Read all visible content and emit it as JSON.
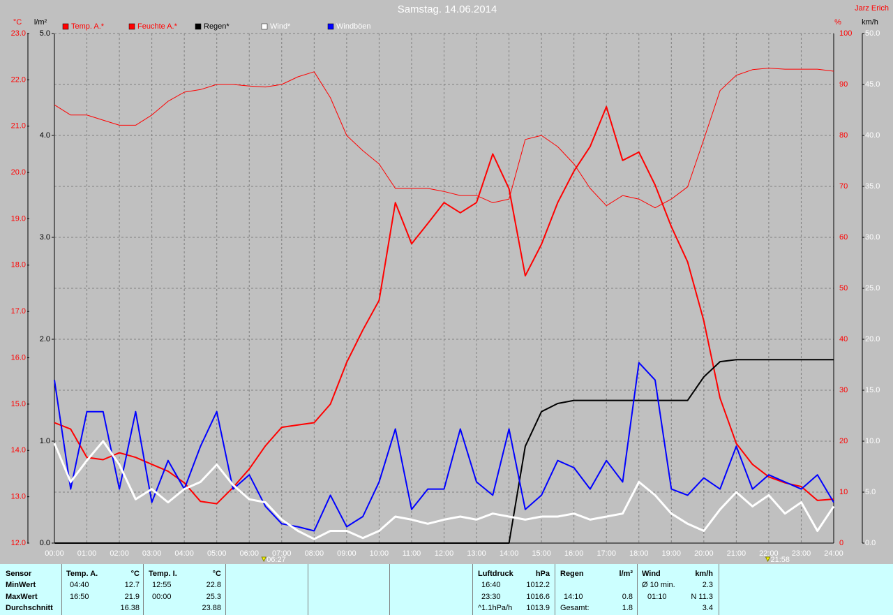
{
  "chart_data": {
    "type": "line",
    "title": "Samstag. 14.06.2014",
    "author": "Jarz Erich",
    "xlim": [
      0,
      24
    ],
    "xticks": [
      {
        "value": 0,
        "label": "00:00"
      },
      {
        "value": 1,
        "label": "01:00"
      },
      {
        "value": 2,
        "label": "02:00"
      },
      {
        "value": 3,
        "label": "03:00"
      },
      {
        "value": 4,
        "label": "04:00"
      },
      {
        "value": 5,
        "label": "05:00"
      },
      {
        "value": 6,
        "label": "06:00"
      },
      {
        "value": 7,
        "label": "07:00"
      },
      {
        "value": 8,
        "label": "08:00"
      },
      {
        "value": 9,
        "label": "09:00"
      },
      {
        "value": 10,
        "label": "10:00"
      },
      {
        "value": 11,
        "label": "11:00"
      },
      {
        "value": 12,
        "label": "12:00"
      },
      {
        "value": 13,
        "label": "13:00"
      },
      {
        "value": 14,
        "label": "14:00"
      },
      {
        "value": 15,
        "label": "15:00"
      },
      {
        "value": 16,
        "label": "16:00"
      },
      {
        "value": 17,
        "label": "17:00"
      },
      {
        "value": 18,
        "label": "18:00"
      },
      {
        "value": 19,
        "label": "19:00"
      },
      {
        "value": 20,
        "label": "20:00"
      },
      {
        "value": 21,
        "label": "21:00"
      },
      {
        "value": 22,
        "label": "22:00"
      },
      {
        "value": 23,
        "label": "23:00"
      },
      {
        "value": 24,
        "label": "24:00"
      }
    ],
    "ylabel": "°C",
    "ylim": [
      12,
      23
    ],
    "yticks": [
      {
        "value": 12,
        "label": "12.0"
      },
      {
        "value": 13,
        "label": "13.0"
      },
      {
        "value": 14,
        "label": "14.0"
      },
      {
        "value": 15,
        "label": "15.0"
      },
      {
        "value": 16,
        "label": "16.0"
      },
      {
        "value": 17,
        "label": "17.0"
      },
      {
        "value": 18,
        "label": "18.0"
      },
      {
        "value": 19,
        "label": "19.0"
      },
      {
        "value": 20,
        "label": "20.0"
      },
      {
        "value": 21,
        "label": "21.0"
      },
      {
        "value": 22,
        "label": "22.0"
      },
      {
        "value": 23,
        "label": "23.0"
      }
    ],
    "y2label": "%",
    "y2lim": [
      0,
      100
    ],
    "y2ticks": [
      0,
      10,
      20,
      30,
      40,
      50,
      60,
      70,
      80,
      90,
      100
    ],
    "y3label": "l/m²",
    "y3lim": [
      0,
      5
    ],
    "y3ticks": [
      {
        "value": 0,
        "label": "0.0"
      },
      {
        "value": 1,
        "label": "1.0"
      },
      {
        "value": 2,
        "label": "2.0"
      },
      {
        "value": 3,
        "label": "3.0"
      },
      {
        "value": 4,
        "label": "4.0"
      },
      {
        "value": 5,
        "label": "5.0"
      }
    ],
    "y4label": "km/h",
    "y4lim": [
      0,
      50
    ],
    "y4ticks": [
      {
        "value": 0,
        "label": "0.0"
      },
      {
        "value": 5,
        "label": "5.0"
      },
      {
        "value": 10,
        "label": "10.0"
      },
      {
        "value": 15,
        "label": "15.0"
      },
      {
        "value": 20,
        "label": "20.0"
      },
      {
        "value": 25,
        "label": "25.0"
      },
      {
        "value": 30,
        "label": "30.0"
      },
      {
        "value": 35,
        "label": "35.0"
      },
      {
        "value": 40,
        "label": "40.0"
      },
      {
        "value": 45,
        "label": "45.0"
      },
      {
        "value": 50,
        "label": "50.0"
      }
    ],
    "grid": true,
    "sun": [
      {
        "x": 6.45,
        "label": "06:27"
      },
      {
        "x": 21.97,
        "label": "21:58"
      }
    ],
    "x": [
      0,
      0.5,
      1,
      1.5,
      2,
      2.5,
      3,
      3.5,
      4,
      4.5,
      5,
      5.5,
      6,
      6.5,
      7,
      7.5,
      8,
      8.5,
      9,
      9.5,
      10,
      10.5,
      11,
      11.5,
      12,
      12.5,
      13,
      13.5,
      14,
      14.5,
      15,
      15.5,
      16,
      16.5,
      17,
      17.5,
      18,
      18.5,
      19,
      19.5,
      20,
      20.5,
      21,
      21.5,
      22,
      22.5,
      23,
      23.5,
      24
    ],
    "series": [
      {
        "name": "Temp. A.*",
        "color": "#ff0000",
        "axis": "y",
        "line_width": 2,
        "values": [
          14.6,
          14.46,
          13.85,
          13.8,
          13.95,
          13.85,
          13.7,
          13.55,
          13.3,
          12.9,
          12.85,
          13.2,
          13.6,
          14.1,
          14.5,
          14.55,
          14.6,
          15.0,
          15.9,
          16.6,
          17.24,
          19.35,
          18.46,
          18.9,
          19.35,
          19.13,
          19.35,
          20.4,
          19.65,
          17.77,
          18.45,
          19.35,
          20.03,
          20.56,
          21.42,
          20.26,
          20.44,
          19.73,
          18.83,
          18.07,
          16.8,
          15.13,
          14.15,
          13.7,
          13.43,
          13.3,
          13.22,
          12.92,
          12.95
        ]
      },
      {
        "name": "Feuchte A.*",
        "color": "#ff0000",
        "axis": "y2",
        "line_width": 1,
        "values": [
          86,
          84,
          84,
          83,
          82,
          82,
          84,
          86.7,
          88.5,
          89,
          90,
          90,
          89.7,
          89.5,
          90,
          91.5,
          92.5,
          87.4,
          80,
          77,
          74.4,
          69.6,
          69.6,
          69.6,
          69,
          68.2,
          68.2,
          66.8,
          67.5,
          79.2,
          80,
          77.8,
          74.4,
          69.6,
          66.2,
          68.2,
          67.5,
          65.8,
          67.5,
          69.9,
          79.2,
          88.8,
          91.8,
          92.9,
          93.2,
          93,
          93,
          93,
          92.6
        ]
      },
      {
        "name": "Regen*",
        "color": "#000000",
        "axis": "y3",
        "line_width": 2,
        "values": [
          0,
          0,
          0,
          0,
          0,
          0,
          0,
          0,
          0,
          0,
          0,
          0,
          0,
          0,
          0,
          0,
          0,
          0,
          0,
          0,
          0,
          0,
          0,
          0,
          0,
          0,
          0,
          0,
          0,
          0.95,
          1.29,
          1.37,
          1.4,
          1.4,
          1.4,
          1.4,
          1.4,
          1.4,
          1.4,
          1.4,
          1.63,
          1.78,
          1.8,
          1.8,
          1.8,
          1.8,
          1.8,
          1.8,
          1.8
        ]
      },
      {
        "name": "Wind*",
        "color": "#ffffff",
        "axis": "y4",
        "line_width": 3,
        "values": [
          9.8,
          6,
          8.1,
          10,
          7.7,
          4.3,
          5.3,
          4,
          5.3,
          6,
          7.7,
          5.7,
          4.3,
          4,
          2.3,
          1.2,
          0.4,
          1.2,
          1.2,
          0.5,
          1.2,
          2.6,
          2.3,
          1.9,
          2.3,
          2.6,
          2.3,
          2.9,
          2.6,
          2.3,
          2.6,
          2.6,
          2.9,
          2.3,
          2.6,
          2.9,
          6,
          4.7,
          2.9,
          1.9,
          1.2,
          3.3,
          5,
          3.6,
          4.7,
          2.9,
          4,
          1.2,
          3.6
        ]
      },
      {
        "name": "Windböen",
        "color": "#0000ff",
        "axis": "y4",
        "line_width": 2,
        "values": [
          16,
          5.3,
          12.9,
          12.9,
          5.3,
          12.9,
          4,
          8.1,
          5.3,
          9.5,
          12.9,
          5.3,
          6.7,
          3.6,
          1.9,
          1.6,
          1.2,
          4.7,
          1.6,
          2.6,
          6,
          11.2,
          3.3,
          5.3,
          5.3,
          11.2,
          6,
          4.7,
          11.2,
          3.3,
          4.7,
          8.1,
          7.4,
          5.3,
          8.1,
          6,
          17.7,
          16,
          5.3,
          4.7,
          6.4,
          5.3,
          9.5,
          5.3,
          6.7,
          6,
          5.3,
          6.7,
          4
        ]
      }
    ]
  },
  "stats": {
    "row_labels": [
      "Sensor",
      "MinWert",
      "MaxWert",
      "Durchschnitt"
    ],
    "temp_a": {
      "header": "Temp. A.",
      "unit": "°C",
      "min_time": "04:40",
      "min": "12.7",
      "max_time": "16:50",
      "max": "21.9",
      "avg": "16.38"
    },
    "temp_i": {
      "header": "Temp. I.",
      "unit": "°C",
      "min_time": "12:55",
      "min": "22.8",
      "max_time": "00:00",
      "max": "25.3",
      "avg": "23.88"
    },
    "pressure": {
      "header": "Luftdruck",
      "unit": "hPa",
      "min_time": "16:40",
      "min": "1012.2",
      "max_time": "23:30",
      "max": "1016.6",
      "avg_label": "^1.1hPa/h",
      "avg": "1013.9"
    },
    "rain": {
      "header": "Regen",
      "unit": "l/m²",
      "max_time": "14:10",
      "max": "0.8",
      "avg_label": "Gesamt:",
      "avg": "1.8"
    },
    "wind": {
      "header": "Wind",
      "unit": "km/h",
      "min_time": "Ø 10 min.",
      "min": "2.3",
      "max_time": "01:10",
      "max": "N 11.3",
      "avg": "3.4"
    }
  }
}
